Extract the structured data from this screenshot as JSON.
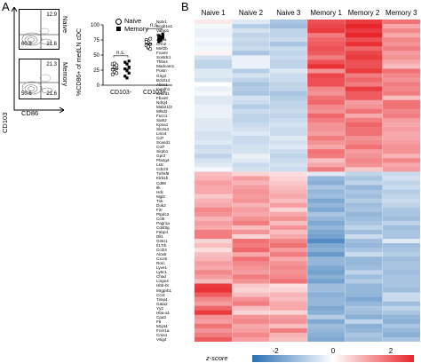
{
  "panels": {
    "a": "A",
    "b": "B"
  },
  "flow": {
    "y_axis_label": "CD103",
    "x_axis_label": "CD86",
    "plots": [
      {
        "condition": "Naive",
        "q_top_right": "12.9",
        "q_bottom_left": "60.9",
        "q_bottom_right": "21.6"
      },
      {
        "condition": "Memory",
        "q_top_right": "21.3",
        "q_bottom_left": "50.6",
        "q_bottom_right": "21.6"
      }
    ]
  },
  "colors": {
    "heat_red": "#e8262b",
    "heat_white": "#ffffff",
    "heat_blue": "#2a6fb5"
  },
  "scatter": {
    "ylabel": "%CD86+ of medLN cDC",
    "legend": [
      {
        "label": "Naive",
        "marker": "open-circle"
      },
      {
        "label": "Memory",
        "marker": "filled-square"
      }
    ],
    "significance": [
      "n.s.",
      "n.s."
    ],
    "chart_data": {
      "type": "scatter",
      "categories": [
        "CD103-",
        "CD103+"
      ],
      "ylim": [
        0,
        100
      ],
      "yticks": [
        0,
        25,
        50,
        75,
        100
      ],
      "series": [
        {
          "name": "Naive",
          "category": "CD103-",
          "values": [
            35,
            30,
            28,
            26,
            22,
            20,
            18,
            36,
            33
          ]
        },
        {
          "name": "Memory",
          "category": "CD103-",
          "values": [
            38,
            35,
            30,
            27,
            24,
            20,
            15,
            12,
            40
          ]
        },
        {
          "name": "Naive",
          "category": "CD103+",
          "values": [
            75,
            70,
            68,
            66,
            62,
            60,
            72,
            64,
            77
          ]
        },
        {
          "name": "Memory",
          "category": "CD103+",
          "values": [
            82,
            80,
            78,
            76,
            74,
            85,
            72,
            79,
            81
          ]
        }
      ]
    }
  },
  "heatmap": {
    "columns": [
      "Naive 1",
      "Naive 2",
      "Naive 3",
      "Memory 1",
      "Memory 2",
      "Memory 3"
    ],
    "genes": [
      "Nptx1",
      "Scgb1a1",
      "Vamp1",
      "Cldn",
      "Aicda",
      "Crm2",
      "Mef2b",
      "Fcamr",
      "Sostdc1",
      "Thbs4",
      "Madcam1",
      "Postn",
      "Gng4",
      "Bcl2l14",
      "Abcc1",
      "Impdh1",
      "Snord1",
      "Fbxo8",
      "Ndrg4",
      "Mab21l3",
      "Mfsd2",
      "Fscn1",
      "Siah2",
      "Kpna1",
      "Slc2a3",
      "Lmo4",
      "Cd7",
      "Scand1",
      "Col7",
      "Sirpb1",
      "Gpr3",
      "Pla2g4",
      "Lstc",
      "Cdc23",
      "Tnfrsf8",
      "Klrb1b",
      "Cd96",
      "Ilk",
      "Hdc",
      "Mgl2",
      "Txk",
      "Dok2",
      "F2r",
      "Ptpdc2",
      "Ccl6",
      "Pagr1a",
      "Cd40lg",
      "Fabp4",
      "Dll1",
      "Gntn1",
      "Il17rb",
      "Ccl24",
      "Alox5",
      "Cxcr6",
      "Rorc",
      "Lyve1",
      "Ly6c1",
      "Chad",
      "Lingo4",
      "Hbb-bt",
      "Mrgprb1",
      "Ccr4",
      "Timp4",
      "Gata2",
      "Yy2",
      "Hba-a1",
      "Cpa3",
      "F5",
      "Mcpt4",
      "Fcer1a",
      "Cma1",
      "Vsig4"
    ],
    "values": [
      [
        0.2,
        -0.3,
        -0.8,
        1.6,
        1.8,
        1.3
      ],
      [
        -0.1,
        -0.7,
        -0.9,
        1.7,
        2.0,
        0.8
      ],
      [
        -0.2,
        -0.4,
        -0.6,
        1.8,
        1.8,
        1.1
      ],
      [
        -0.2,
        -0.6,
        -0.6,
        1.2,
        2.0,
        0.8
      ],
      [
        -0.1,
        -0.5,
        -0.5,
        1.4,
        1.6,
        1.1
      ],
      [
        -0.2,
        -0.6,
        -0.8,
        1.5,
        1.9,
        1.0
      ],
      [
        -0.1,
        -0.5,
        -0.5,
        1.6,
        1.4,
        1.2
      ],
      [
        0.1,
        -0.8,
        -0.6,
        1.5,
        1.7,
        0.9
      ],
      [
        -0.4,
        -0.2,
        -0.5,
        1.2,
        1.8,
        1.0
      ],
      [
        -0.6,
        -0.2,
        -0.6,
        1.6,
        1.6,
        0.8
      ],
      [
        -0.6,
        -0.2,
        -0.6,
        1.9,
        1.6,
        0.6
      ],
      [
        -0.3,
        -0.7,
        -0.3,
        1.0,
        1.8,
        1.3
      ],
      [
        -0.3,
        -0.4,
        -0.5,
        1.7,
        1.2,
        1.1
      ],
      [
        -0.4,
        -0.6,
        -0.5,
        1.6,
        1.4,
        1.0
      ],
      [
        0.0,
        -0.8,
        -0.6,
        1.6,
        1.2,
        1.2
      ],
      [
        -0.2,
        -0.7,
        -0.6,
        1.1,
        1.8,
        1.1
      ],
      [
        -0.1,
        -0.8,
        -0.8,
        1.0,
        1.5,
        1.2
      ],
      [
        -0.3,
        -0.4,
        -0.7,
        1.3,
        1.5,
        0.6
      ],
      [
        -0.3,
        -0.5,
        -0.6,
        1.4,
        0.9,
        1.3
      ],
      [
        -0.2,
        -0.7,
        -0.6,
        1.1,
        1.0,
        1.3
      ],
      [
        -0.2,
        -0.5,
        -0.5,
        1.0,
        1.3,
        1.1
      ],
      [
        -0.2,
        -0.6,
        -0.6,
        1.4,
        0.8,
        1.2
      ],
      [
        -0.3,
        -0.6,
        -0.5,
        1.2,
        1.2,
        0.9
      ],
      [
        -0.3,
        -0.5,
        -0.4,
        1.0,
        1.4,
        0.8
      ],
      [
        -0.3,
        -0.4,
        -0.5,
        1.0,
        1.3,
        0.9
      ],
      [
        -0.4,
        -0.3,
        -0.5,
        0.9,
        1.3,
        0.8
      ],
      [
        -0.4,
        -0.5,
        -0.3,
        1.2,
        1.0,
        0.8
      ],
      [
        -0.3,
        -0.5,
        -0.4,
        1.0,
        1.1,
        0.9
      ],
      [
        -0.5,
        -0.4,
        -0.3,
        0.8,
        1.3,
        1.0
      ],
      [
        -0.4,
        -0.4,
        -0.5,
        1.3,
        0.9,
        1.0
      ],
      [
        -0.6,
        -0.2,
        -0.6,
        1.2,
        1.0,
        0.7
      ],
      [
        -0.4,
        -0.3,
        -0.5,
        0.6,
        1.1,
        1.1
      ],
      [
        -0.3,
        -0.5,
        -0.4,
        0.8,
        1.0,
        0.8
      ],
      [
        -0.1,
        -0.4,
        -0.5,
        1.2,
        0.5,
        0.9
      ],
      [
        0.6,
        0.4,
        0.3,
        -0.3,
        -0.6,
        -0.5
      ],
      [
        0.7,
        0.9,
        0.4,
        -1.0,
        -0.8,
        -0.4
      ],
      [
        0.9,
        0.7,
        0.5,
        -1.1,
        -0.6,
        -0.6
      ],
      [
        0.8,
        0.9,
        0.6,
        -0.8,
        -1.0,
        -0.5
      ],
      [
        0.8,
        1.0,
        0.7,
        -1.0,
        -0.8,
        -0.7
      ],
      [
        0.5,
        0.9,
        0.8,
        -0.9,
        -0.9,
        -0.6
      ],
      [
        0.7,
        1.0,
        0.6,
        -1.2,
        -0.7,
        -0.5
      ],
      [
        0.8,
        0.7,
        0.9,
        -1.0,
        -0.9,
        -0.6
      ],
      [
        1.1,
        0.9,
        0.4,
        -1.2,
        -0.8,
        -0.8
      ],
      [
        1.0,
        0.8,
        0.8,
        -0.8,
        -1.0,
        -0.8
      ],
      [
        0.7,
        1.0,
        1.0,
        -1.0,
        -0.9,
        -0.9
      ],
      [
        0.9,
        1.2,
        0.6,
        -1.2,
        -0.8,
        -0.6
      ],
      [
        0.8,
        0.6,
        1.0,
        -1.0,
        -0.6,
        -0.9
      ],
      [
        1.2,
        1.0,
        0.6,
        -1.2,
        -0.9,
        -0.8
      ],
      [
        1.2,
        0.4,
        0.8,
        -1.3,
        -0.5,
        -0.8
      ],
      [
        0.4,
        1.3,
        1.1,
        -1.6,
        -0.9,
        -0.3
      ],
      [
        0.6,
        1.2,
        1.3,
        -1.2,
        -1.0,
        -0.9
      ],
      [
        0.3,
        1.4,
        0.9,
        -1.1,
        -0.8,
        -0.8
      ],
      [
        0.6,
        0.8,
        1.2,
        -1.4,
        -0.5,
        -0.7
      ],
      [
        0.7,
        1.3,
        0.8,
        -1.0,
        -1.0,
        -0.9
      ],
      [
        0.9,
        1.1,
        1.0,
        -1.0,
        -1.0,
        -0.8
      ],
      [
        0.8,
        1.0,
        1.1,
        -1.2,
        -0.9,
        -0.8
      ],
      [
        1.1,
        0.9,
        1.0,
        -1.3,
        -0.6,
        -0.9
      ],
      [
        0.9,
        1.2,
        1.1,
        -1.1,
        -0.9,
        -0.8
      ],
      [
        0.6,
        1.0,
        1.3,
        -1.3,
        -0.7,
        -0.8
      ],
      [
        1.8,
        0.5,
        0.3,
        -0.9,
        -1.0,
        -0.8
      ],
      [
        1.9,
        0.4,
        0.4,
        -0.9,
        -1.0,
        -0.9
      ],
      [
        1.5,
        0.6,
        0.7,
        -1.1,
        -1.0,
        -0.5
      ],
      [
        1.1,
        1.0,
        0.6,
        -1.0,
        -1.2,
        -0.5
      ],
      [
        0.9,
        1.2,
        0.8,
        -1.0,
        -1.0,
        -0.9
      ],
      [
        1.4,
        0.6,
        0.8,
        -1.2,
        -0.8,
        -0.6
      ],
      [
        1.8,
        0.4,
        0.4,
        -1.1,
        -0.9,
        -0.8
      ],
      [
        1.0,
        1.0,
        0.9,
        -0.7,
        -1.1,
        -1.0
      ],
      [
        0.9,
        1.1,
        1.0,
        -1.2,
        -0.6,
        -1.1
      ],
      [
        1.3,
        0.8,
        0.6,
        -0.9,
        -1.1,
        -0.8
      ],
      [
        1.0,
        0.9,
        1.2,
        -1.0,
        -1.0,
        -1.0
      ],
      [
        1.2,
        1.1,
        0.7,
        -1.1,
        -0.8,
        -1.1
      ],
      [
        1.5,
        0.9,
        0.6,
        -1.2,
        -0.9,
        -0.8
      ]
    ],
    "zscore": {
      "label": "z-score",
      "ticks": [
        "-2",
        "0",
        "2"
      ]
    }
  }
}
